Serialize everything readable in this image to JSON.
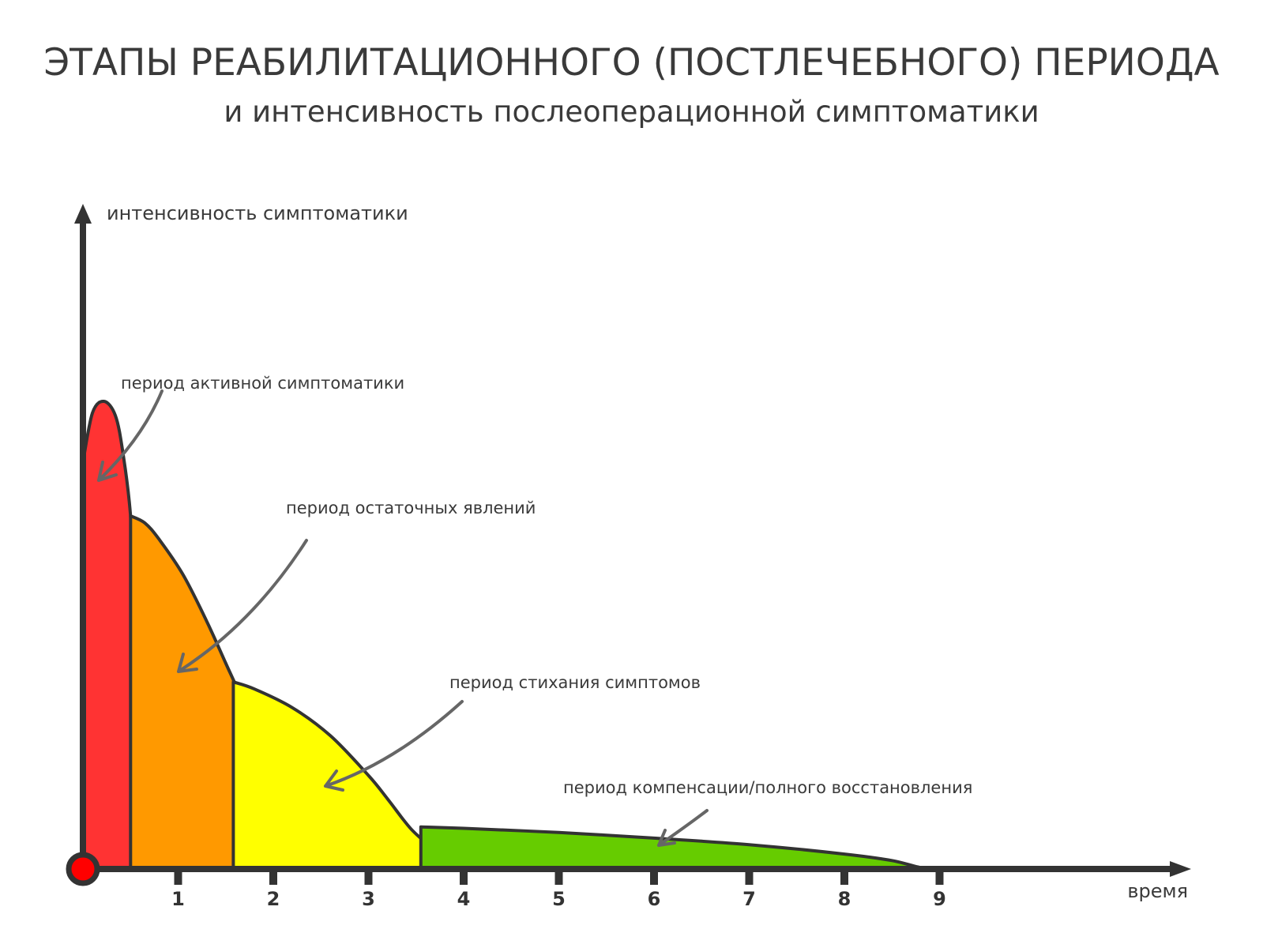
{
  "chart_data": {
    "type": "area",
    "title": "ЭТАПЫ РЕАБИЛИТАЦИОННОГО (ПОСТЛЕЧЕБНОГО) ПЕРИОДА",
    "subtitle": "и интенсивность послеоперационной симптоматики",
    "ylabel": "интенсивность симптоматики",
    "xlabel": "время",
    "x_ticks": [
      "1",
      "2",
      "3",
      "4",
      "5",
      "6",
      "7",
      "8",
      "9"
    ],
    "xlim": [
      0,
      10.6
    ],
    "ylim": [
      0,
      1
    ],
    "series": [
      {
        "name": "период активной симптоматики",
        "color": "#ff3333",
        "points": [
          [
            0,
            0.87
          ],
          [
            0.1,
            0.975
          ],
          [
            0.22,
            1.0
          ],
          [
            0.34,
            0.97
          ],
          [
            0.42,
            0.89
          ],
          [
            0.5,
            0.755
          ],
          [
            0.57,
            0.5
          ],
          [
            0.62,
            0.2
          ],
          [
            0.68,
            0
          ]
        ]
      },
      {
        "name": "период остаточных явлений",
        "color": "#ff9900",
        "points": [
          [
            0.5,
            0.755
          ],
          [
            0.65,
            0.74
          ],
          [
            0.8,
            0.705
          ],
          [
            1.05,
            0.63
          ],
          [
            1.3,
            0.53
          ],
          [
            1.5,
            0.44
          ],
          [
            1.65,
            0.37
          ],
          [
            1.8,
            0.27
          ],
          [
            1.95,
            0.1
          ],
          [
            2.02,
            0
          ]
        ]
      },
      {
        "name": "период стихания симптомов",
        "color": "#ffff00",
        "points": [
          [
            1.58,
            0.4
          ],
          [
            1.8,
            0.385
          ],
          [
            2.2,
            0.345
          ],
          [
            2.6,
            0.285
          ],
          [
            3.0,
            0.2
          ],
          [
            3.2,
            0.15
          ],
          [
            3.45,
            0.085
          ],
          [
            3.7,
            0.04
          ],
          [
            3.95,
            0
          ]
        ]
      },
      {
        "name": "период компенсации/полного восстановления",
        "color": "#66cc00",
        "points": [
          [
            3.55,
            0.09
          ],
          [
            4.0,
            0.087
          ],
          [
            5.0,
            0.078
          ],
          [
            6.0,
            0.066
          ],
          [
            7.0,
            0.052
          ],
          [
            8.0,
            0.032
          ],
          [
            8.5,
            0.018
          ],
          [
            8.8,
            0.003
          ],
          [
            9.0,
            0
          ]
        ]
      }
    ]
  }
}
